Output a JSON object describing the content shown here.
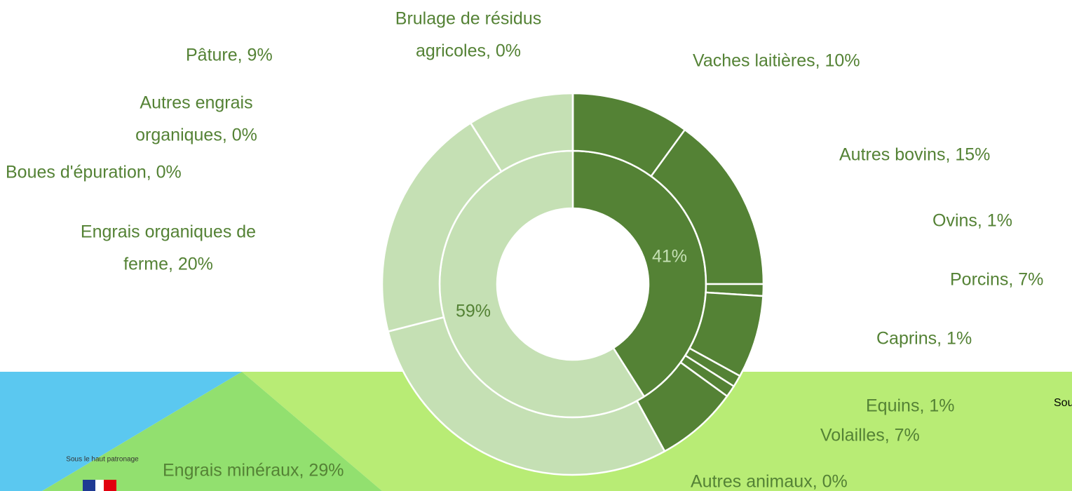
{
  "chart_data": {
    "type": "donut",
    "series": [
      {
        "name": "inner",
        "values": [
          41,
          59
        ],
        "value_labels": [
          "41%",
          "59%"
        ],
        "colors": [
          "#548235",
          "#c5e0b4"
        ],
        "label_colors": [
          "#c5e0b4",
          "#548235"
        ]
      },
      {
        "name": "outer",
        "values": [
          10,
          15,
          1,
          7,
          1,
          1,
          7,
          0,
          29,
          20,
          0,
          0,
          9,
          0
        ],
        "value_labels": [
          [
            "Vaches laitières, 10%"
          ],
          [
            "Autres bovins, 15%"
          ],
          [
            "Ovins, 1%"
          ],
          [
            "Porcins, 7%"
          ],
          [
            "Caprins, 1%"
          ],
          [
            "Equins, 1%"
          ],
          [
            "Volailles, 7%"
          ],
          [
            "Autres animaux, 0%"
          ],
          [
            "Engrais minéraux, 29%"
          ],
          [
            "Engrais organiques de",
            "ferme, 20%"
          ],
          [
            "Boues d'épuration, 0%"
          ],
          [
            "Autres engrais",
            "organiques, 0%"
          ],
          [
            "Pâture, 9%"
          ],
          [
            "Brulage de résidus",
            "agricoles, 0%"
          ]
        ],
        "colors": [
          "#548235",
          "#548235",
          "#548235",
          "#548235",
          "#548235",
          "#548235",
          "#548235",
          "#548235",
          "#c5e0b4",
          "#c5e0b4",
          "#c5e0b4",
          "#c5e0b4",
          "#c5e0b4",
          "#c5e0b4"
        ]
      }
    ],
    "label_color": "#548235"
  },
  "footer": {
    "patronage": "Sous le haut patronage",
    "source": "Sou"
  }
}
